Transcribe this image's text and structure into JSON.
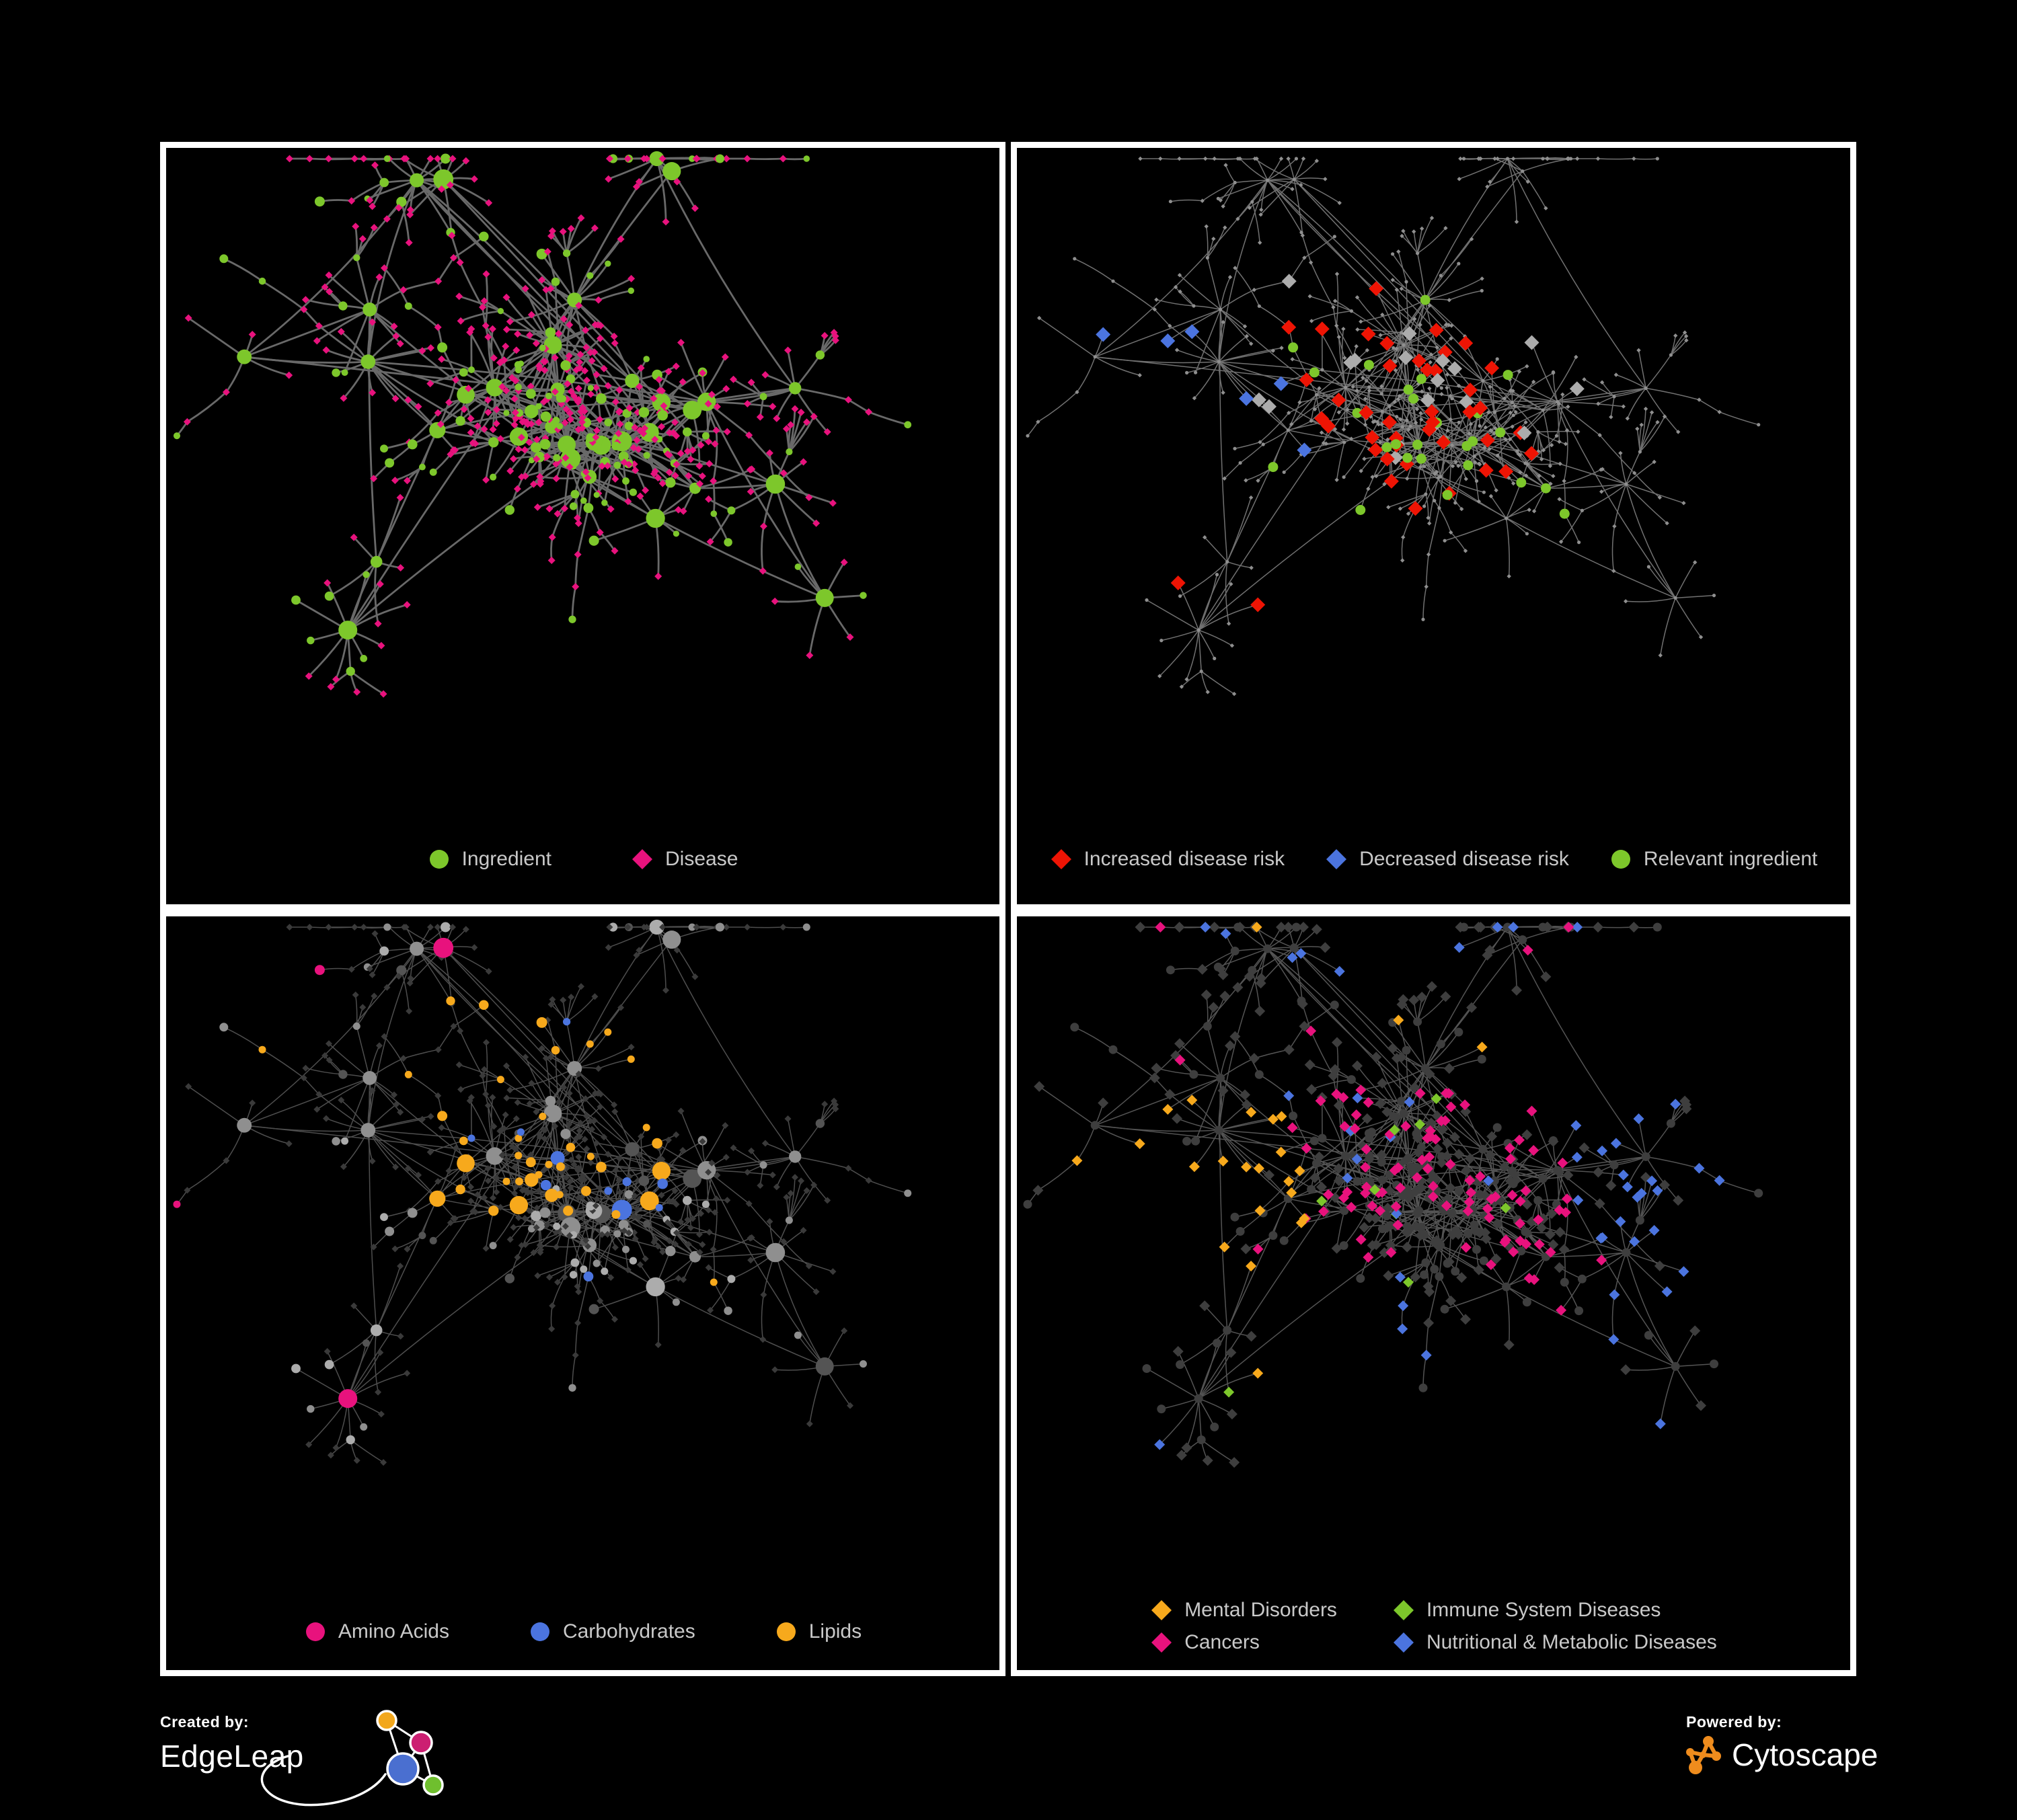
{
  "figure": {
    "background": "#000000",
    "panel_border": "#ffffff"
  },
  "panels": [
    {
      "name": "ingredient-disease-network",
      "legend": [
        {
          "label": "Ingredient",
          "shape": "circle",
          "color": "#7dc72b"
        },
        {
          "label": "Disease",
          "shape": "diamond",
          "color": "#e8127d"
        }
      ]
    },
    {
      "name": "disease-risk-network",
      "legend": [
        {
          "label": "Increased disease risk",
          "shape": "diamond",
          "color": "#ee1404"
        },
        {
          "label": "Decreased disease risk",
          "shape": "diamond",
          "color": "#4b74df"
        },
        {
          "label": "Relevant ingredient",
          "shape": "circle",
          "color": "#7dc72b"
        }
      ]
    },
    {
      "name": "nutrient-class-network",
      "legend": [
        {
          "label": "Amino Acids",
          "shape": "circle",
          "color": "#e8127d"
        },
        {
          "label": "Carbohydrates",
          "shape": "circle",
          "color": "#4b74df"
        },
        {
          "label": "Lipids",
          "shape": "circle",
          "color": "#f7a91c"
        }
      ]
    },
    {
      "name": "disease-class-network",
      "legend": [
        {
          "label": "Mental Disorders",
          "shape": "diamond",
          "color": "#f7a91c"
        },
        {
          "label": "Immune System Diseases",
          "shape": "diamond",
          "color": "#7dc72b"
        },
        {
          "label": "Cancers",
          "shape": "diamond",
          "color": "#e8127d"
        },
        {
          "label": "Nutritional & Metabolic Diseases",
          "shape": "diamond",
          "color": "#4b74df"
        }
      ]
    }
  ],
  "footer": {
    "created_by_label": "Created by:",
    "created_by_brand": "EdgeLeap",
    "powered_by_label": "Powered by:",
    "powered_by_brand": "Cytoscape",
    "edgeleap_colors": {
      "orange": "#f2a71c",
      "magenta": "#cc1f72",
      "blue": "#4a6fd0",
      "green": "#6fbf2e"
    },
    "cytoscape_orange": "#ef8c1d"
  },
  "network": {
    "seed": 19,
    "hub_count": 34,
    "styles": [
      {
        "edge": "#6f6f6f",
        "edge_width": 2.8,
        "edge_opacity": 0.95,
        "ingredient": "#7dc72b",
        "disease": "#e8127d"
      },
      {
        "edge": "#858585",
        "edge_width": 1.5,
        "edge_opacity": 0.85,
        "base": "#8f8f8f",
        "increased": "#ee1404",
        "decreased": "#4b74df",
        "neutral": "#acacac",
        "relevant": "#7dc72b"
      },
      {
        "edge": "#5c5c5c",
        "edge_width": 1.5,
        "edge_opacity": 0.85,
        "grays": [
          "#545454",
          "#8f8f8f",
          "#acacac"
        ],
        "disease": "#3a3a3a",
        "amino": "#e8127d",
        "carb": "#4b74df",
        "lipid": "#f7a91c"
      },
      {
        "edge": "#696969",
        "edge_width": 1.5,
        "edge_opacity": 0.8,
        "node": "#3e3e3e",
        "mental": "#f7a91c",
        "immune": "#7dc72b",
        "cancer": "#e8127d",
        "nutri": "#4b74df"
      }
    ]
  }
}
